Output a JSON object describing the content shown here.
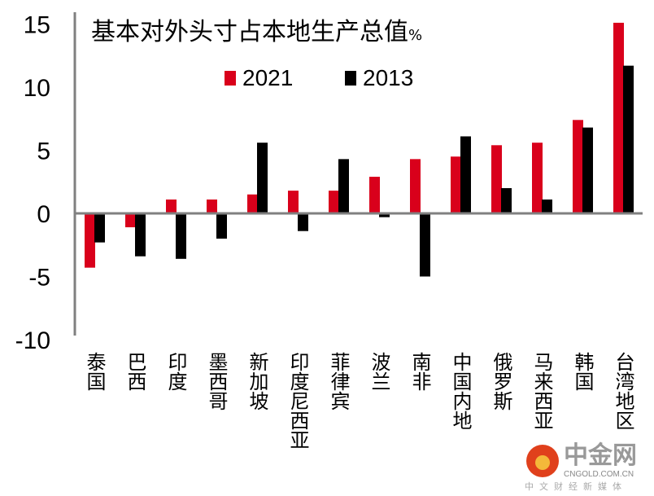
{
  "chart_data": {
    "type": "bar",
    "title": "基本对外头寸占本地生产总值",
    "title_unit": "%",
    "categories": [
      "泰国",
      "巴西",
      "印度",
      "墨西哥",
      "新加坡",
      "印度尼西亚",
      "菲律宾",
      "波兰",
      "南非",
      "中国内地",
      "俄罗斯",
      "马来西亚",
      "韩国",
      "台湾地区"
    ],
    "series": [
      {
        "name": "2021",
        "color": "#d9001b",
        "values": [
          -4.3,
          -1.1,
          1.1,
          1.1,
          1.5,
          1.8,
          1.8,
          2.9,
          4.3,
          4.5,
          5.4,
          5.6,
          7.4,
          15.1
        ]
      },
      {
        "name": "2013",
        "color": "#000000",
        "values": [
          -2.3,
          -3.4,
          -3.6,
          -2.0,
          5.6,
          -1.4,
          4.3,
          -0.3,
          -5.0,
          6.1,
          2.0,
          1.1,
          6.8,
          11.7
        ]
      }
    ],
    "yticks": [
      "15",
      "10",
      "5",
      "0",
      "-5",
      "-10"
    ],
    "ytick_values": [
      15,
      10,
      5,
      0,
      -5,
      -10
    ],
    "ylim": [
      -10,
      15
    ],
    "legend": "top-center",
    "grid": false
  },
  "watermark": {
    "brand": "中金网",
    "site": "CNGOLD.COM.CN",
    "tagline": "中文财经新媒体"
  }
}
